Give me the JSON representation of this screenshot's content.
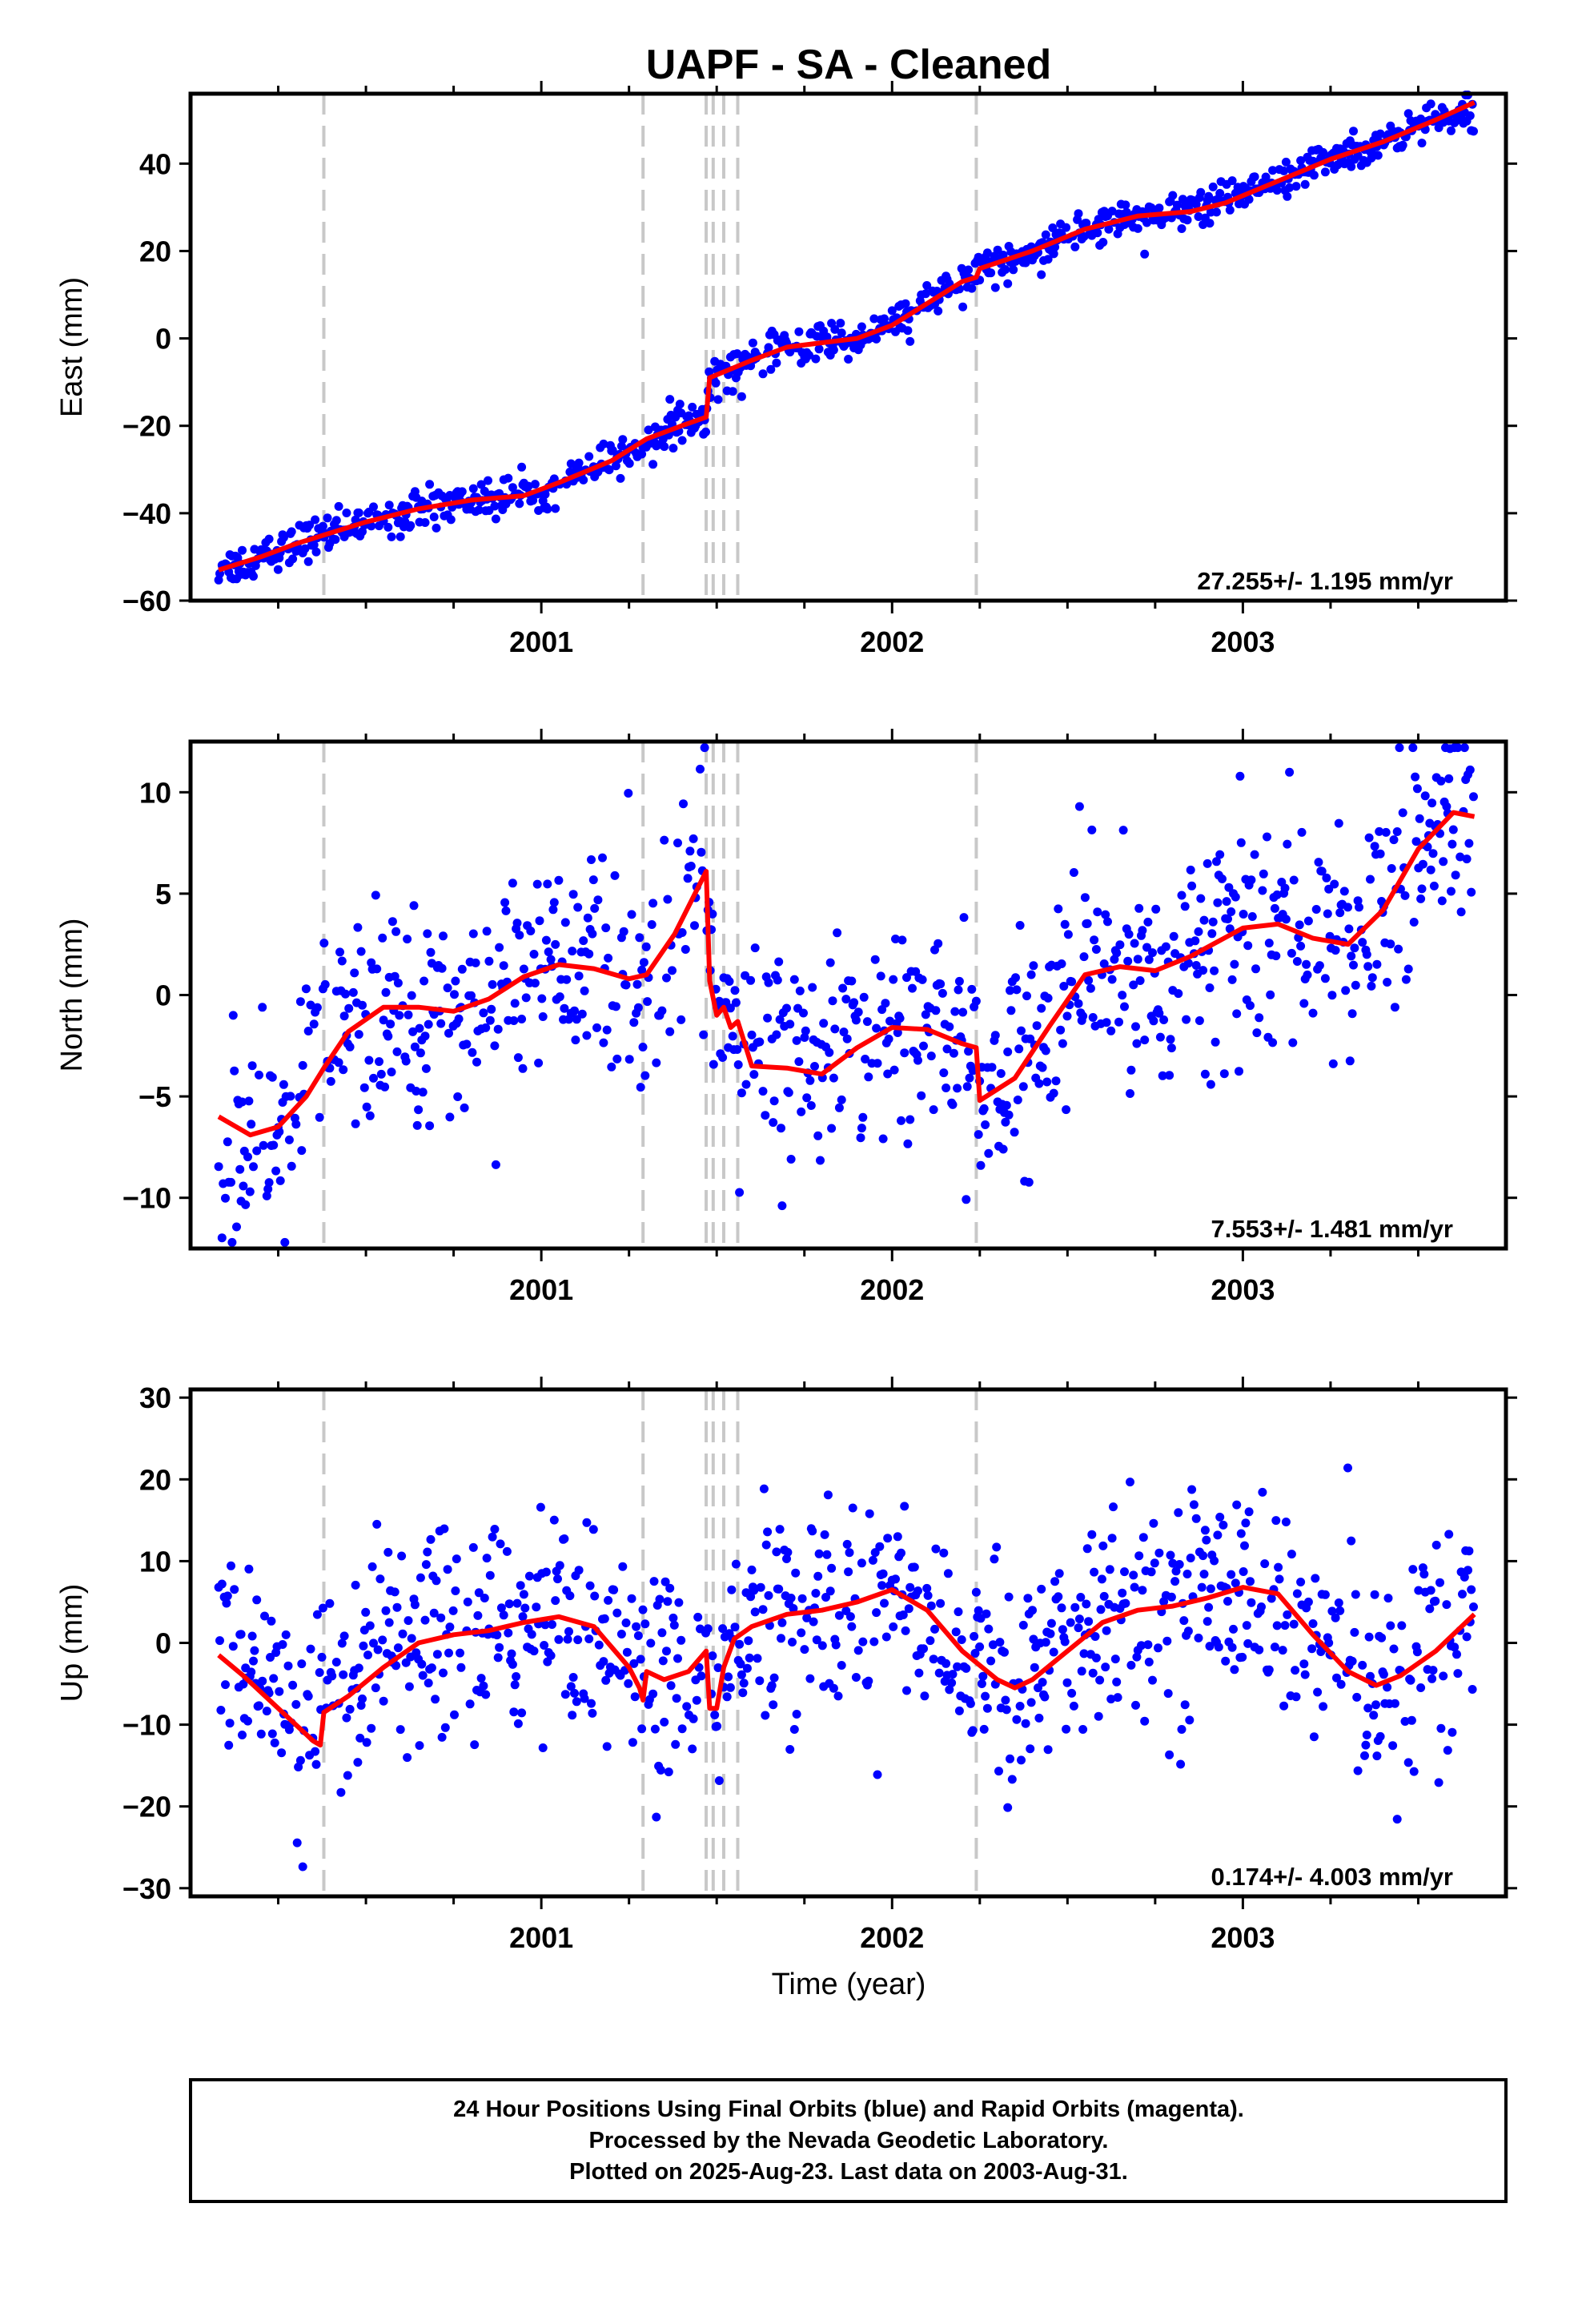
{
  "title": "UAPF  - SA - Cleaned",
  "x_label": "Time (year)",
  "colors": {
    "points": "#0000ff",
    "model": "#ff0000",
    "events": "#c8c8c8",
    "frame": "#000000"
  },
  "footer": {
    "line1": "24 Hour Positions Using Final Orbits (blue) and Rapid Orbits (magenta).",
    "line2": "Processed by the Nevada Geodetic Laboratory.",
    "line3": "Plotted on 2025-Aug-23. Last data on 2003-Aug-31."
  },
  "chart_data": [
    {
      "type": "scatter",
      "ylabel": "East (mm)",
      "rate": "27.255+/- 1.195 mm/yr",
      "xlim": [
        2000.0,
        2003.75
      ],
      "ylim": [
        -60,
        56
      ],
      "yticks": [
        "40",
        "20",
        "0",
        "−20",
        "−40",
        "−60"
      ],
      "ytick_values": [
        40,
        20,
        0,
        -20,
        -40,
        -60
      ],
      "xticks": [
        "2001",
        "2002",
        "2003"
      ],
      "xtick_values": [
        2001,
        2002,
        2003
      ],
      "event_lines": [
        2000.38,
        2001.29,
        2001.47,
        2001.49,
        2001.52,
        2001.56,
        2002.24
      ],
      "scatter_noise": 2.2,
      "series": [
        {
          "kind": "model",
          "x": [
            2000.08,
            2000.2,
            2000.3,
            2000.38,
            2000.5,
            2000.65,
            2000.8,
            2000.95,
            2001.05,
            2001.2,
            2001.3,
            2001.4,
            2001.47,
            2001.48,
            2001.6,
            2001.7,
            2001.8,
            2001.9,
            2002.0,
            2002.1,
            2002.2,
            2002.24,
            2002.25,
            2002.4,
            2002.55,
            2002.7,
            2002.85,
            2002.95,
            2003.1,
            2003.25,
            2003.4,
            2003.55,
            2003.66
          ],
          "y": [
            -53,
            -50,
            -47,
            -45,
            -42,
            -39,
            -37,
            -36,
            -33,
            -28,
            -23,
            -20,
            -18,
            -9,
            -5,
            -2,
            -1,
            0,
            3,
            8,
            13,
            14,
            16,
            20,
            25,
            28,
            29,
            31,
            36,
            41,
            45,
            50,
            54
          ]
        }
      ]
    },
    {
      "type": "scatter",
      "ylabel": "North (mm)",
      "rate": "7.553+/- 1.481 mm/yr",
      "xlim": [
        2000.0,
        2003.75
      ],
      "ylim": [
        -12.5,
        12.5
      ],
      "yticks": [
        "10",
        "5",
        "0",
        "−5",
        "−10"
      ],
      "ytick_values": [
        10,
        5,
        0,
        -5,
        -10
      ],
      "xticks": [
        "2001",
        "2002",
        "2003"
      ],
      "xtick_values": [
        2001,
        2002,
        2003
      ],
      "event_lines": [
        2000.38,
        2001.29,
        2001.47,
        2001.49,
        2001.52,
        2001.56,
        2002.24
      ],
      "scatter_noise": 2.6,
      "series": [
        {
          "kind": "model",
          "x": [
            2000.08,
            2000.17,
            2000.25,
            2000.33,
            2000.38,
            2000.45,
            2000.55,
            2000.65,
            2000.75,
            2000.85,
            2000.95,
            2001.05,
            2001.15,
            2001.25,
            2001.3,
            2001.38,
            2001.47,
            2001.48,
            2001.5,
            2001.52,
            2001.54,
            2001.56,
            2001.6,
            2001.7,
            2001.8,
            2001.9,
            2002.0,
            2002.1,
            2002.2,
            2002.24,
            2002.25,
            2002.35,
            2002.45,
            2002.55,
            2002.65,
            2002.75,
            2002.85,
            2003.0,
            2003.1,
            2003.2,
            2003.3,
            2003.4,
            2003.5,
            2003.6,
            2003.66
          ],
          "y": [
            -6,
            -6.9,
            -6.5,
            -5,
            -3.6,
            -1.8,
            -0.6,
            -0.6,
            -0.8,
            -0.2,
            0.9,
            1.5,
            1.3,
            0.8,
            1,
            3,
            6.1,
            0.7,
            -1,
            -0.6,
            -1.6,
            -1.3,
            -3.5,
            -3.6,
            -3.9,
            -2.6,
            -1.6,
            -1.7,
            -2.4,
            -2.6,
            -5.2,
            -4.1,
            -1.5,
            1,
            1.4,
            1.2,
            1.9,
            3.3,
            3.5,
            2.8,
            2.5,
            4.2,
            7.2,
            9,
            8.8
          ]
        }
      ]
    },
    {
      "type": "scatter",
      "ylabel": "Up (mm)",
      "rate": "0.174+/- 4.003 mm/yr",
      "xlim": [
        2000.0,
        2003.75
      ],
      "ylim": [
        -31,
        31
      ],
      "yticks": [
        "30",
        "20",
        "10",
        "0",
        "−10",
        "−20",
        "−30"
      ],
      "ytick_values": [
        30,
        20,
        10,
        0,
        -10,
        -20,
        -30
      ],
      "xticks": [
        "2001",
        "2002",
        "2003"
      ],
      "xtick_values": [
        2001,
        2002,
        2003
      ],
      "event_lines": [
        2000.38,
        2001.29,
        2001.47,
        2001.49,
        2001.52,
        2001.56,
        2002.24
      ],
      "scatter_noise": 6.5,
      "series": [
        {
          "kind": "model",
          "x": [
            2000.08,
            2000.15,
            2000.25,
            2000.35,
            2000.37,
            2000.38,
            2000.45,
            2000.55,
            2000.65,
            2000.75,
            2000.85,
            2000.95,
            2001.05,
            2001.15,
            2001.25,
            2001.28,
            2001.29,
            2001.3,
            2001.35,
            2001.42,
            2001.47,
            2001.48,
            2001.5,
            2001.52,
            2001.55,
            2001.6,
            2001.7,
            2001.8,
            2001.9,
            2002.0,
            2002.1,
            2002.2,
            2002.3,
            2002.35,
            2002.4,
            2002.5,
            2002.6,
            2002.7,
            2002.8,
            2002.9,
            2003.0,
            2003.1,
            2003.2,
            2003.3,
            2003.38,
            2003.45,
            2003.55,
            2003.66
          ],
          "y": [
            -1.5,
            -4,
            -8,
            -12,
            -12.5,
            -8.5,
            -6.5,
            -3,
            0,
            1,
            1.5,
            2.5,
            3.2,
            2,
            -3,
            -5.5,
            -7,
            -3.5,
            -4.5,
            -3.5,
            -1,
            -8,
            -8,
            -3,
            0.5,
            2,
            3.5,
            4,
            5,
            6.5,
            4,
            -1,
            -4.5,
            -5.5,
            -4.5,
            -1,
            2.5,
            4,
            4.5,
            5.5,
            6.8,
            6,
            1,
            -3.5,
            -5.2,
            -4,
            -1,
            3.5
          ]
        }
      ]
    }
  ]
}
